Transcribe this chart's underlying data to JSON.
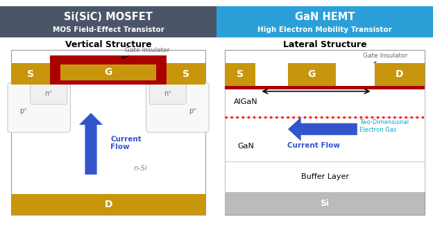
{
  "title_left": "Si(SiC) MOSFET",
  "subtitle_left": "MOS Field-Effect Transistor",
  "title_right": "GaN HEMT",
  "subtitle_right": "High Electron Mobility Transistor",
  "struct_left": "Vertical Structure",
  "struct_right": "Lateral Structure",
  "header_left_bg": "#4A5568",
  "header_right_bg": "#2BA0D8",
  "gold_color": "#C8960C",
  "red_color": "#AA0000",
  "blue_arrow": "#3355CC",
  "cyan_2deg": "#00AACC",
  "si_gray": "#BBBBBB",
  "body_border": "#999999",
  "region_border": "#BBBBBB",
  "n_region_fill": "#F0F0F0",
  "p_region_fill": "#F8F8F8",
  "white": "#FFFFFF",
  "nsi_label_color": "#888888",
  "label_gray": "#666666"
}
